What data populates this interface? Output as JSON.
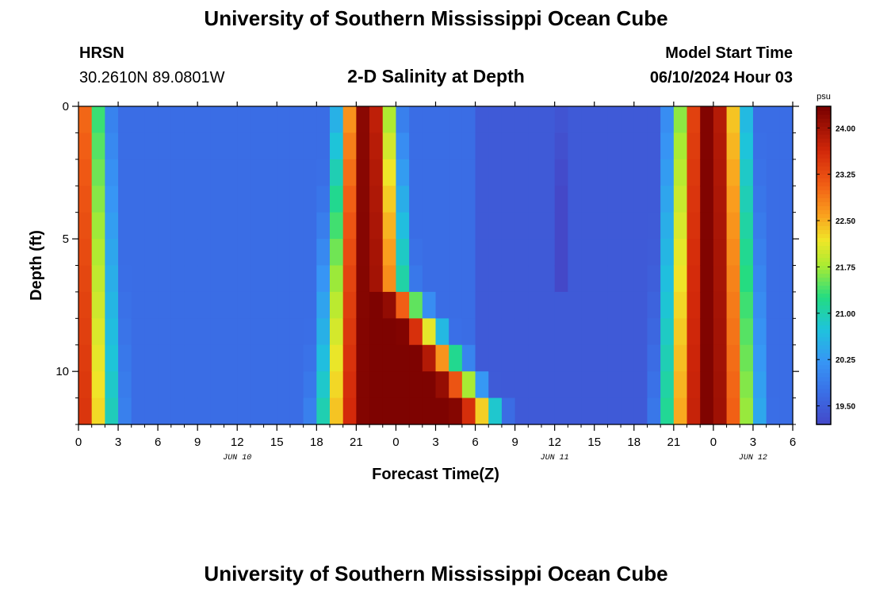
{
  "header": {
    "title": "University of Southern Mississippi Ocean Cube",
    "station": "HRSN",
    "coords": "30.2610N  89.0801W",
    "subtitle": "2-D Salinity at Depth",
    "start_label": "Model Start Time",
    "start_value": "06/10/2024 Hour 03"
  },
  "footer": {
    "title": "University of Southern Mississippi Ocean Cube"
  },
  "chart_data": {
    "type": "heatmap",
    "xlabel": "Forecast Time(Z)",
    "ylabel": "Depth (ft)",
    "x_range_hours": [
      0,
      54
    ],
    "y_range_ft": [
      0,
      12
    ],
    "x_tick_labels": [
      "0",
      "3",
      "6",
      "9",
      "12",
      "15",
      "18",
      "21",
      "0",
      "3",
      "6",
      "9",
      "12",
      "15",
      "18",
      "21",
      "0",
      "3",
      "6"
    ],
    "y_tick_labels": [
      "0",
      "5",
      "10"
    ],
    "day_labels": [
      {
        "hour": 12,
        "text": "JUN 10"
      },
      {
        "hour": 36,
        "text": "JUN 11"
      },
      {
        "hour": 51,
        "text": "JUN 12"
      }
    ],
    "colorbar": {
      "unit": "psu",
      "range": [
        19.2,
        24.35
      ],
      "tick_labels": [
        "24.00",
        "23.25",
        "22.50",
        "21.75",
        "21.00",
        "20.25",
        "19.50"
      ],
      "tick_values": [
        24.0,
        23.25,
        22.5,
        21.75,
        21.0,
        20.25,
        19.5
      ]
    },
    "salinity_pattern": {
      "low_value": 19.7,
      "high_value": 24.3,
      "min_value": 19.3,
      "peaks": [
        {
          "center_hour": -1,
          "half_width_surface": 4.0,
          "half_width_bottom": 5.2
        },
        {
          "center_hour": 21.8,
          "half_width_surface": 3.0,
          "half_width_bottom": 5.0,
          "bottom_tail_hours": 7
        },
        {
          "center_hour": 47.7,
          "half_width_surface": 3.8,
          "half_width_bottom": 5.0
        }
      ],
      "anomaly": {
        "hour_start": 36.5,
        "hour_end": 37.5,
        "depth_max_ft": 6.5,
        "min_value": 19.3
      }
    }
  }
}
